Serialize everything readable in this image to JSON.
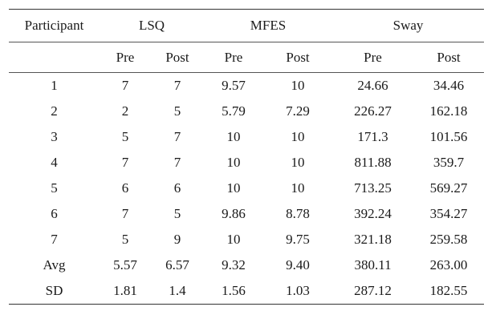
{
  "table": {
    "header_participant": "Participant",
    "groups": [
      "LSQ",
      "MFES",
      "Sway"
    ],
    "sub_headers": [
      "Pre",
      "Post",
      "Pre",
      "Post",
      "Pre",
      "Post"
    ],
    "rows": [
      [
        "1",
        "7",
        "7",
        "9.57",
        "10",
        "24.66",
        "34.46"
      ],
      [
        "2",
        "2",
        "5",
        "5.79",
        "7.29",
        "226.27",
        "162.18"
      ],
      [
        "3",
        "5",
        "7",
        "10",
        "10",
        "171.3",
        "101.56"
      ],
      [
        "4",
        "7",
        "7",
        "10",
        "10",
        "811.88",
        "359.7"
      ],
      [
        "5",
        "6",
        "6",
        "10",
        "10",
        "713.25",
        "569.27"
      ],
      [
        "6",
        "7",
        "5",
        "9.86",
        "8.78",
        "392.24",
        "354.27"
      ],
      [
        "7",
        "5",
        "9",
        "10",
        "9.75",
        "321.18",
        "259.58"
      ],
      [
        "Avg",
        "5.57",
        "6.57",
        "9.32",
        "9.40",
        "380.11",
        "263.00"
      ],
      [
        "SD",
        "1.81",
        "1.4",
        "1.56",
        "1.03",
        "287.12",
        "182.55"
      ]
    ]
  }
}
